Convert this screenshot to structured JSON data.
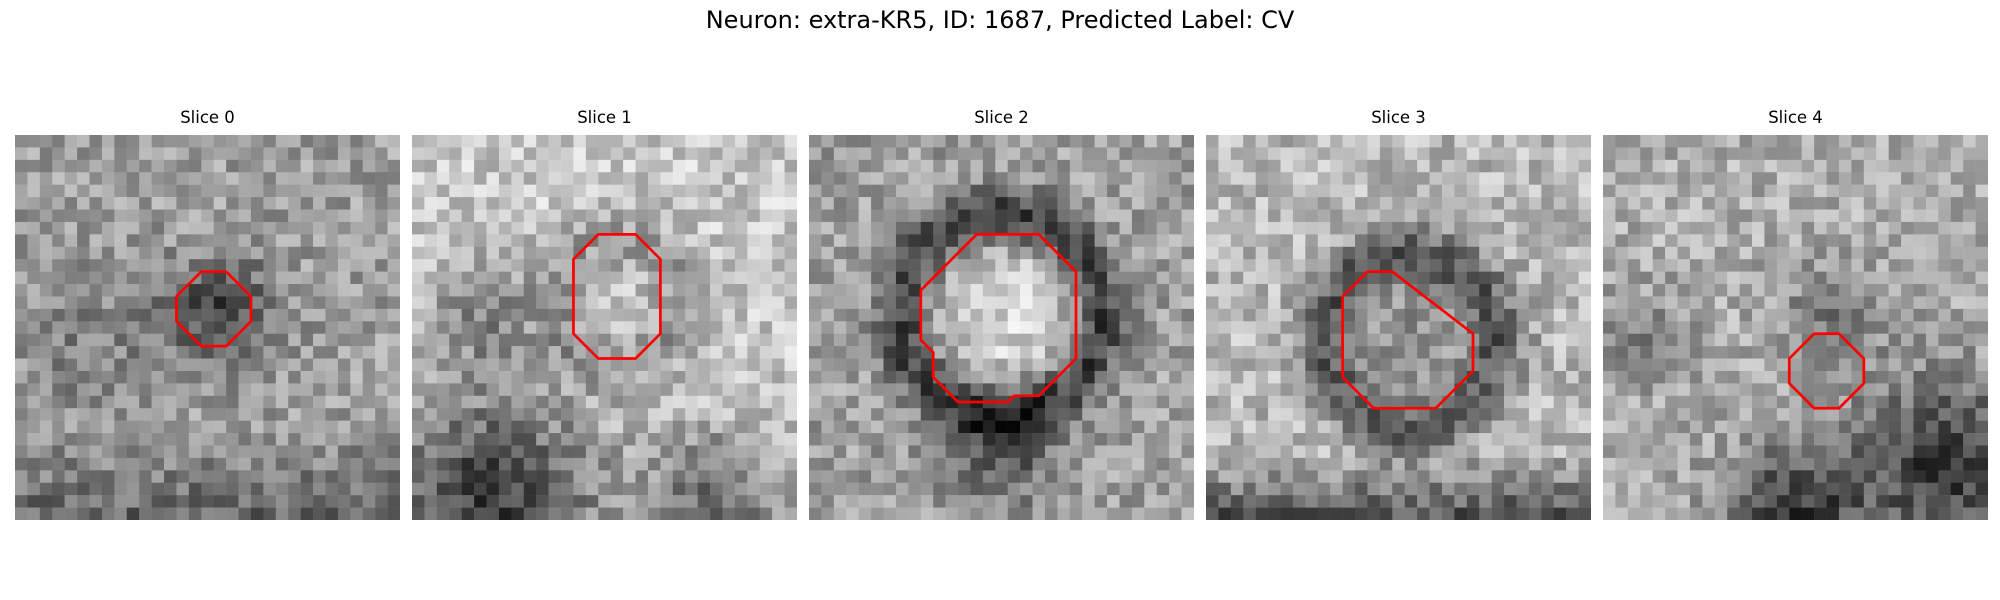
{
  "figure": {
    "title": "Neuron: extra-KR5, ID: 1687, Predicted Label: CV",
    "overlay_color": "#ff0000"
  },
  "panels": [
    {
      "title": "Slice 0"
    },
    {
      "title": "Slice 1"
    },
    {
      "title": "Slice 2"
    },
    {
      "title": "Slice 3"
    },
    {
      "title": "Slice 4"
    }
  ]
}
